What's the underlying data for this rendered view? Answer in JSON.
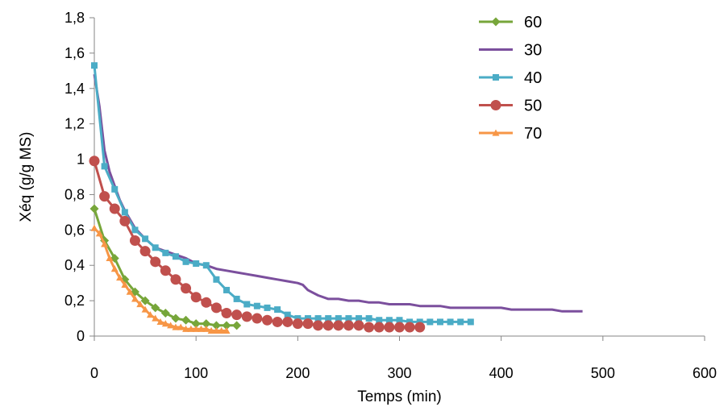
{
  "chart_data": {
    "type": "line",
    "title": "",
    "xlabel": "Temps (min)",
    "ylabel": "Xéq (g/g MS)",
    "xlim": [
      0,
      600
    ],
    "ylim": [
      0,
      1.8
    ],
    "xticks": [
      0,
      100,
      200,
      300,
      400,
      500,
      600
    ],
    "yticks": [
      0,
      0.2,
      0.4,
      0.6,
      0.8,
      1,
      1.2,
      1.4,
      1.6,
      1.8
    ],
    "tick_format": "decimal-comma",
    "grid": false,
    "legend_position": "top-right",
    "series": [
      {
        "name": "60",
        "color": "#77a63a",
        "marker": "diamond",
        "x": [
          0,
          10,
          20,
          30,
          40,
          50,
          60,
          70,
          80,
          90,
          100,
          110,
          120,
          130,
          140
        ],
        "y": [
          0.72,
          0.54,
          0.44,
          0.32,
          0.25,
          0.2,
          0.16,
          0.13,
          0.1,
          0.09,
          0.07,
          0.07,
          0.06,
          0.06,
          0.06
        ]
      },
      {
        "name": "30",
        "color": "#7b4f9d",
        "marker": "none",
        "x": [
          0,
          5,
          10,
          15,
          20,
          25,
          30,
          35,
          40,
          50,
          60,
          70,
          80,
          90,
          100,
          110,
          120,
          130,
          140,
          150,
          160,
          170,
          180,
          190,
          200,
          205,
          210,
          220,
          230,
          240,
          250,
          260,
          270,
          280,
          290,
          300,
          310,
          320,
          330,
          340,
          350,
          360,
          370,
          380,
          390,
          400,
          410,
          420,
          430,
          440,
          450,
          460,
          470,
          480
        ],
        "y": [
          1.48,
          1.3,
          1.05,
          0.93,
          0.85,
          0.77,
          0.71,
          0.66,
          0.61,
          0.55,
          0.5,
          0.48,
          0.46,
          0.44,
          0.41,
          0.4,
          0.38,
          0.37,
          0.36,
          0.35,
          0.34,
          0.33,
          0.32,
          0.31,
          0.3,
          0.29,
          0.26,
          0.23,
          0.21,
          0.21,
          0.2,
          0.2,
          0.19,
          0.19,
          0.18,
          0.18,
          0.18,
          0.17,
          0.17,
          0.17,
          0.16,
          0.16,
          0.16,
          0.16,
          0.16,
          0.16,
          0.15,
          0.15,
          0.15,
          0.15,
          0.15,
          0.14,
          0.14,
          0.14
        ]
      },
      {
        "name": "40",
        "color": "#4bacc6",
        "marker": "square",
        "x": [
          0,
          10,
          20,
          30,
          40,
          50,
          60,
          70,
          80,
          90,
          100,
          110,
          120,
          130,
          140,
          150,
          160,
          170,
          180,
          190,
          200,
          210,
          220,
          230,
          240,
          250,
          260,
          270,
          280,
          290,
          300,
          310,
          320,
          330,
          340,
          350,
          360,
          370
        ],
        "y": [
          1.53,
          0.96,
          0.83,
          0.7,
          0.6,
          0.55,
          0.5,
          0.47,
          0.45,
          0.42,
          0.41,
          0.4,
          0.32,
          0.26,
          0.21,
          0.18,
          0.17,
          0.16,
          0.15,
          0.12,
          0.1,
          0.1,
          0.1,
          0.1,
          0.1,
          0.1,
          0.1,
          0.1,
          0.09,
          0.09,
          0.09,
          0.08,
          0.08,
          0.08,
          0.08,
          0.08,
          0.08,
          0.08
        ]
      },
      {
        "name": "50",
        "color": "#c0504d",
        "marker": "circle",
        "x": [
          0,
          10,
          20,
          30,
          40,
          50,
          60,
          70,
          80,
          90,
          100,
          110,
          120,
          130,
          140,
          150,
          160,
          170,
          180,
          190,
          200,
          210,
          220,
          230,
          240,
          250,
          260,
          270,
          280,
          290,
          300,
          310,
          320
        ],
        "y": [
          0.99,
          0.79,
          0.72,
          0.65,
          0.54,
          0.48,
          0.42,
          0.37,
          0.32,
          0.27,
          0.22,
          0.19,
          0.16,
          0.13,
          0.12,
          0.11,
          0.1,
          0.09,
          0.08,
          0.08,
          0.07,
          0.07,
          0.06,
          0.06,
          0.06,
          0.06,
          0.06,
          0.05,
          0.05,
          0.05,
          0.05,
          0.05,
          0.05
        ]
      },
      {
        "name": "70",
        "color": "#f79646",
        "marker": "triangle",
        "x": [
          0,
          5,
          10,
          15,
          20,
          25,
          30,
          35,
          40,
          45,
          50,
          55,
          60,
          65,
          70,
          75,
          80,
          85,
          90,
          95,
          100,
          105,
          110,
          115,
          120,
          125,
          130
        ],
        "y": [
          0.61,
          0.58,
          0.52,
          0.44,
          0.38,
          0.33,
          0.29,
          0.25,
          0.21,
          0.18,
          0.15,
          0.12,
          0.1,
          0.08,
          0.07,
          0.06,
          0.05,
          0.05,
          0.04,
          0.04,
          0.04,
          0.04,
          0.04,
          0.03,
          0.03,
          0.03,
          0.03
        ]
      }
    ]
  }
}
